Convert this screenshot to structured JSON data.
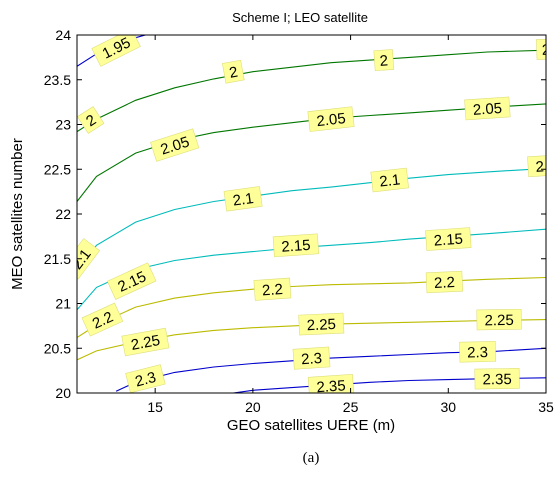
{
  "chart_data": {
    "type": "contour",
    "title": "Scheme I; LEO satellite",
    "xlabel": "GEO satellites UERE (m)",
    "ylabel": "MEO satellites number",
    "xlim": [
      11,
      35
    ],
    "ylim": [
      20,
      24
    ],
    "xticks": [
      15,
      20,
      25,
      30,
      35
    ],
    "yticks": [
      20,
      20.5,
      21,
      21.5,
      22,
      22.5,
      23,
      23.5,
      24
    ],
    "grid": false,
    "levels": [
      {
        "value": 1.95,
        "label": "1.95",
        "color": "#0000cc",
        "points": [
          [
            11,
            23.65
          ],
          [
            12,
            23.79
          ],
          [
            13,
            23.9
          ],
          [
            14,
            23.97
          ],
          [
            14.5,
            24.0
          ]
        ],
        "label_positions": [
          [
            13.0,
            23.86
          ]
        ]
      },
      {
        "value": 2.0,
        "label": "2",
        "color": "#007700",
        "points": [
          [
            11,
            22.92
          ],
          [
            12,
            23.06
          ],
          [
            14,
            23.27
          ],
          [
            16,
            23.41
          ],
          [
            18,
            23.51
          ],
          [
            20,
            23.59
          ],
          [
            22,
            23.64
          ],
          [
            24,
            23.69
          ],
          [
            26,
            23.72
          ],
          [
            28,
            23.75
          ],
          [
            30,
            23.78
          ],
          [
            32,
            23.81
          ],
          [
            35,
            23.83
          ]
        ],
        "label_positions": [
          [
            11.7,
            23.05
          ],
          [
            19.0,
            23.59
          ],
          [
            26.7,
            23.72
          ],
          [
            35.0,
            23.84
          ]
        ]
      },
      {
        "value": 2.05,
        "label": "2.05",
        "color": "#007700",
        "points": [
          [
            11,
            22.14
          ],
          [
            12,
            22.42
          ],
          [
            14,
            22.68
          ],
          [
            16,
            22.82
          ],
          [
            18,
            22.91
          ],
          [
            20,
            22.97
          ],
          [
            22,
            23.02
          ],
          [
            24,
            23.07
          ],
          [
            26,
            23.1
          ],
          [
            28,
            23.13
          ],
          [
            30,
            23.16
          ],
          [
            32,
            23.19
          ],
          [
            35,
            23.23
          ]
        ],
        "label_positions": [
          [
            16.0,
            22.77
          ],
          [
            24.0,
            23.06
          ],
          [
            32.0,
            23.18
          ]
        ]
      },
      {
        "value": 2.1,
        "label": "2.1",
        "color": "#00bbbb",
        "points": [
          [
            11,
            21.36
          ],
          [
            12,
            21.65
          ],
          [
            14,
            21.91
          ],
          [
            16,
            22.05
          ],
          [
            18,
            22.14
          ],
          [
            20,
            22.2
          ],
          [
            22,
            22.26
          ],
          [
            24,
            22.3
          ],
          [
            26,
            22.35
          ],
          [
            28,
            22.4
          ],
          [
            30,
            22.44
          ],
          [
            32,
            22.47
          ],
          [
            35,
            22.51
          ]
        ],
        "label_positions": [
          [
            11.2,
            21.5
          ],
          [
            19.5,
            22.17
          ],
          [
            27.0,
            22.38
          ],
          [
            35.0,
            22.54
          ]
        ]
      },
      {
        "value": 2.15,
        "label": "2.15",
        "color": "#00bbbb",
        "points": [
          [
            11,
            20.93
          ],
          [
            12,
            21.18
          ],
          [
            14,
            21.38
          ],
          [
            16,
            21.48
          ],
          [
            18,
            21.54
          ],
          [
            20,
            21.58
          ],
          [
            22,
            21.62
          ],
          [
            24,
            21.65
          ],
          [
            26,
            21.68
          ],
          [
            28,
            21.72
          ],
          [
            30,
            21.75
          ],
          [
            32,
            21.78
          ],
          [
            35,
            21.83
          ]
        ],
        "label_positions": [
          [
            13.8,
            21.25
          ],
          [
            22.2,
            21.65
          ],
          [
            30.0,
            21.72
          ]
        ]
      },
      {
        "value": 2.2,
        "label": "2.2",
        "color": "#bbbb00",
        "points": [
          [
            11,
            20.62
          ],
          [
            12,
            20.76
          ],
          [
            14,
            20.96
          ],
          [
            16,
            21.06
          ],
          [
            18,
            21.12
          ],
          [
            20,
            21.16
          ],
          [
            22,
            21.19
          ],
          [
            24,
            21.21
          ],
          [
            26,
            21.22
          ],
          [
            28,
            21.23
          ],
          [
            30,
            21.25
          ],
          [
            32,
            21.27
          ],
          [
            35,
            21.29
          ]
        ],
        "label_positions": [
          [
            12.3,
            20.82
          ],
          [
            21.0,
            21.16
          ],
          [
            29.8,
            21.24
          ]
        ]
      },
      {
        "value": 2.25,
        "label": "2.25",
        "color": "#bbbb00",
        "points": [
          [
            11,
            20.37
          ],
          [
            12,
            20.47
          ],
          [
            14,
            20.57
          ],
          [
            16,
            20.65
          ],
          [
            18,
            20.7
          ],
          [
            20,
            20.73
          ],
          [
            22,
            20.75
          ],
          [
            24,
            20.77
          ],
          [
            26,
            20.78
          ],
          [
            28,
            20.79
          ],
          [
            30,
            20.8
          ],
          [
            32,
            20.81
          ],
          [
            35,
            20.82
          ]
        ],
        "label_positions": [
          [
            14.5,
            20.57
          ],
          [
            23.5,
            20.77
          ],
          [
            32.6,
            20.82
          ]
        ]
      },
      {
        "value": 2.3,
        "label": "2.3",
        "color": "#0000cc",
        "points": [
          [
            13,
            20.02
          ],
          [
            14,
            20.12
          ],
          [
            16,
            20.23
          ],
          [
            18,
            20.29
          ],
          [
            20,
            20.33
          ],
          [
            22,
            20.36
          ],
          [
            24,
            20.39
          ],
          [
            26,
            20.41
          ],
          [
            28,
            20.43
          ],
          [
            30,
            20.45
          ],
          [
            32,
            20.46
          ],
          [
            35,
            20.5
          ]
        ],
        "label_positions": [
          [
            14.5,
            20.16
          ],
          [
            23.0,
            20.39
          ],
          [
            31.5,
            20.46
          ]
        ]
      },
      {
        "value": 2.35,
        "label": "2.35",
        "color": "#0000cc",
        "points": [
          [
            19,
            20.0
          ],
          [
            20,
            20.03
          ],
          [
            22,
            20.06
          ],
          [
            24,
            20.09
          ],
          [
            26,
            20.12
          ],
          [
            28,
            20.14
          ],
          [
            30,
            20.15
          ],
          [
            32,
            20.16
          ],
          [
            35,
            20.17
          ]
        ],
        "label_positions": [
          [
            24.0,
            20.08
          ],
          [
            32.5,
            20.16
          ]
        ]
      }
    ]
  },
  "caption": "(a)"
}
